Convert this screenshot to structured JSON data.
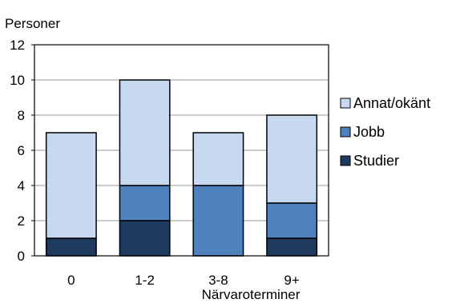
{
  "chart_data": {
    "type": "bar",
    "stacked": true,
    "title": "",
    "ylabel": "Personer",
    "xlabel": "Närvaroterminer",
    "categories": [
      "0",
      "1-2",
      "3-8",
      "9+"
    ],
    "ylim": [
      0,
      12
    ],
    "yticks": [
      0,
      2,
      4,
      6,
      8,
      10,
      12
    ],
    "grid": true,
    "legend_position": "right",
    "series": [
      {
        "name": "Studier",
        "values": [
          1,
          2,
          0,
          1
        ],
        "color": "#1f3a5f"
      },
      {
        "name": "Jobb",
        "values": [
          0,
          2,
          4,
          2
        ],
        "color": "#4f81bd"
      },
      {
        "name": "Annat/okänt",
        "values": [
          6,
          6,
          3,
          5
        ],
        "color": "#c6d9f1"
      }
    ],
    "legend_order": [
      "Annat/okänt",
      "Jobb",
      "Studier"
    ]
  }
}
